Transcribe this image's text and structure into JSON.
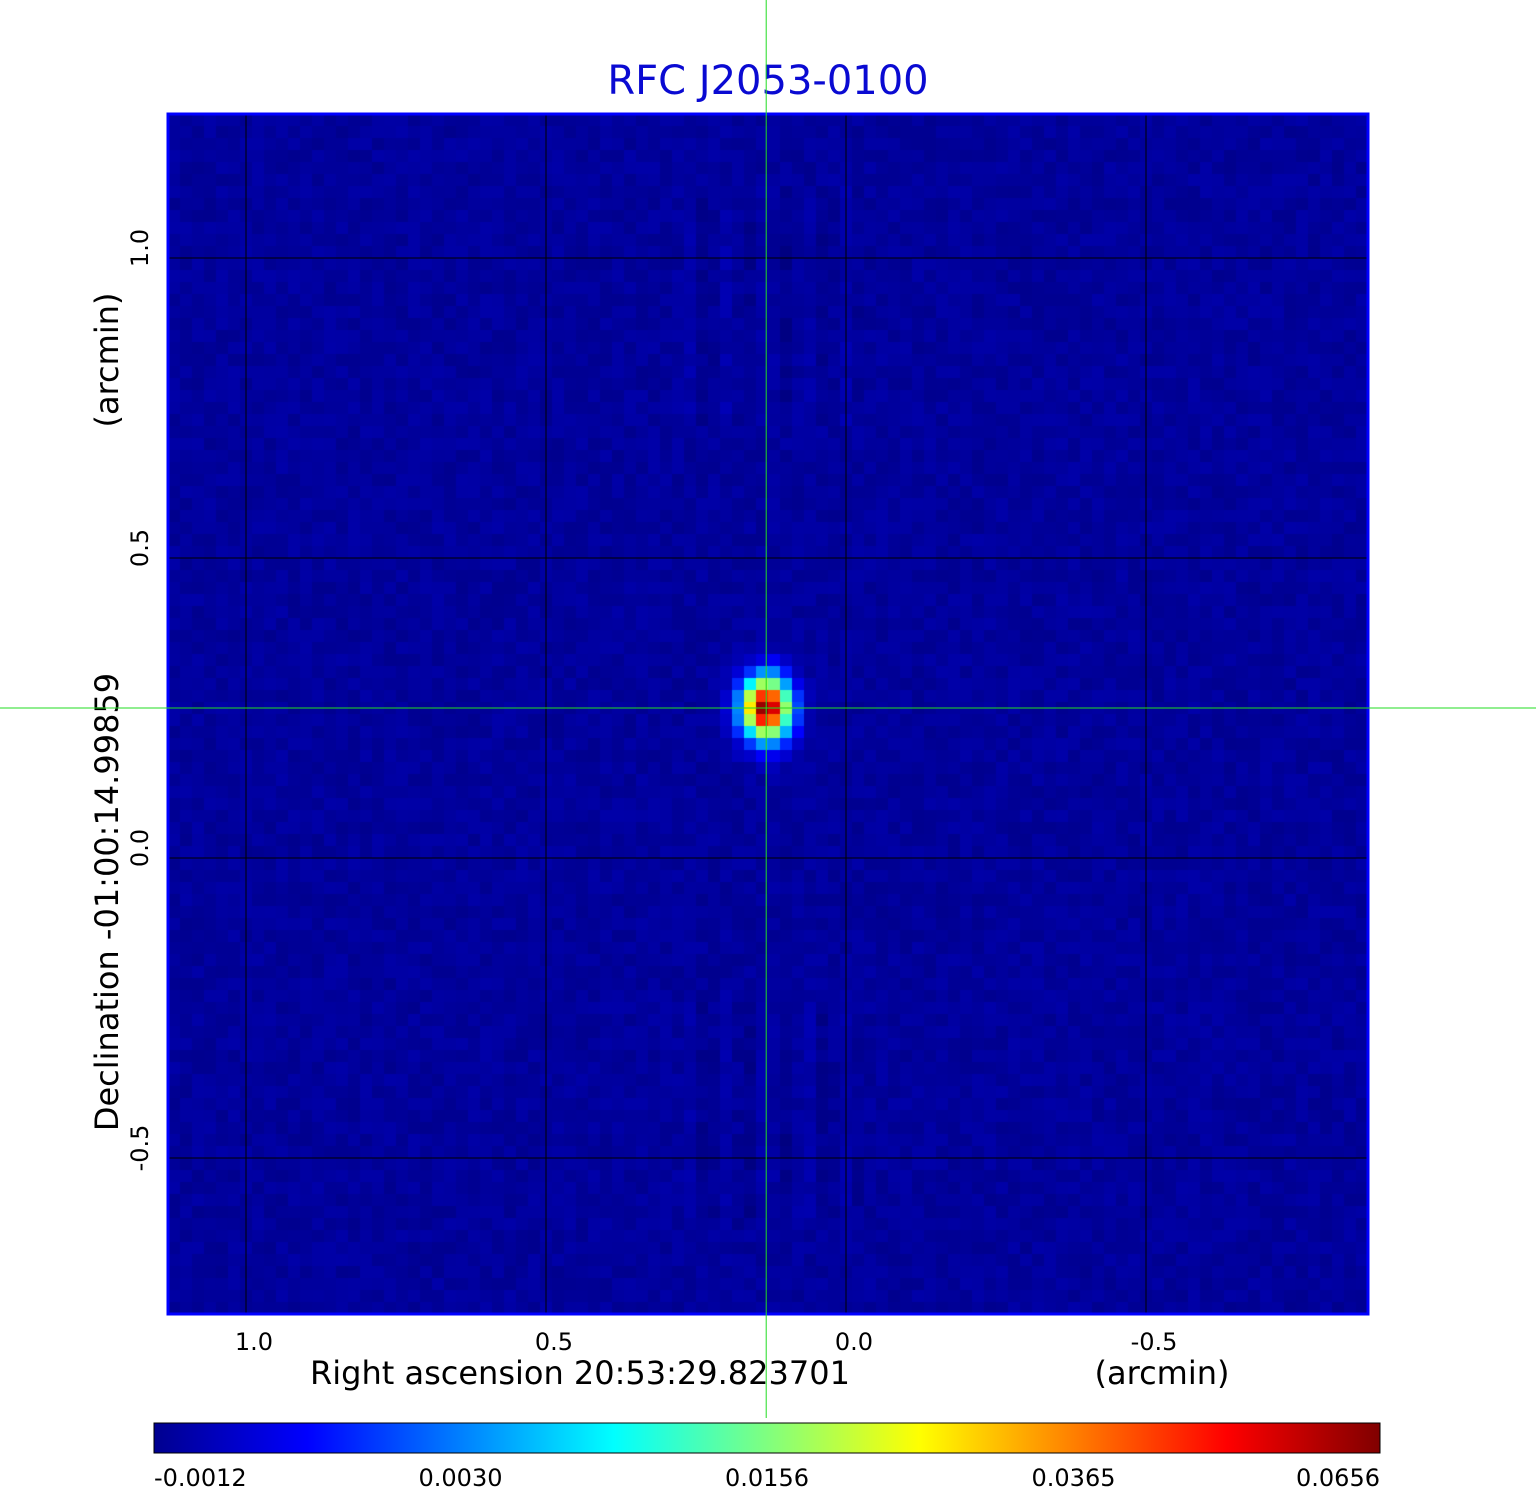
{
  "chart_data": {
    "type": "heatmap",
    "title": "RFC J2053-0100",
    "xlabel": "Right ascension  20:53:29.823701",
    "xunit": "(arcmin)",
    "ylabel": "Declination  -01:00:14.99859",
    "yunit": "(arcmin)",
    "xlim": [
      1.13,
      -0.87
    ],
    "ylim": [
      -0.76,
      1.24
    ],
    "x_ticks": [
      {
        "value": 1.0,
        "label": "1.0"
      },
      {
        "value": 0.5,
        "label": "0.5"
      },
      {
        "value": 0.0,
        "label": "0.0"
      },
      {
        "value": -0.5,
        "label": "-0.5"
      }
    ],
    "y_ticks": [
      {
        "value": 1.0,
        "label": "1.0"
      },
      {
        "value": 0.5,
        "label": "0.5"
      },
      {
        "value": 0.0,
        "label": "0.0"
      },
      {
        "value": -0.5,
        "label": "-0.5"
      }
    ],
    "grid": true,
    "crosshair": {
      "x": 0.133,
      "y": 0.25
    },
    "source_peak": {
      "x": 0.133,
      "y": 0.25,
      "value": 0.0656
    },
    "colorbar": {
      "position": "bottom",
      "colormap": "jet",
      "tick_labels": [
        "-0.0012",
        "0.0030",
        "0.0156",
        "0.0365",
        "0.0656"
      ],
      "range": [
        -0.0012,
        0.0656
      ]
    },
    "background_level": 0.0006
  }
}
